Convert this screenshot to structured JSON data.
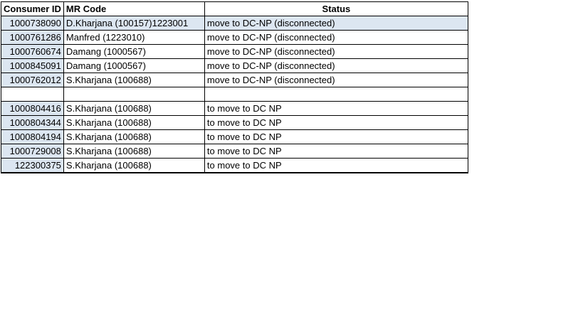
{
  "colors": {
    "cell_fill_blue": "#dce6f1",
    "border": "#000000",
    "text": "#000000",
    "background": "#ffffff"
  },
  "table": {
    "columns": [
      {
        "key": "consumer_id",
        "label": "Consumer ID"
      },
      {
        "key": "mr_code",
        "label": "MR Code"
      },
      {
        "key": "status",
        "label": "Status"
      }
    ],
    "rows": [
      {
        "consumer_id": "1000738090",
        "mr_code": "D.Kharjana (100157)1223001",
        "status": "move to DC-NP (disconnected)",
        "highlighted": true,
        "empty": false
      },
      {
        "consumer_id": "1000761286",
        "mr_code": "Manfred (1223010)",
        "status": "move to DC-NP (disconnected)",
        "highlighted": false,
        "empty": false
      },
      {
        "consumer_id": "1000760674",
        "mr_code": "Damang (1000567)",
        "status": "move to DC-NP (disconnected)",
        "highlighted": false,
        "empty": false
      },
      {
        "consumer_id": "1000845091",
        "mr_code": "Damang (1000567)",
        "status": "move to DC-NP (disconnected)",
        "highlighted": false,
        "empty": false
      },
      {
        "consumer_id": "1000762012",
        "mr_code": "S.Kharjana (100688)",
        "status": "move to DC-NP (disconnected)",
        "highlighted": false,
        "empty": false
      },
      {
        "consumer_id": "",
        "mr_code": "",
        "status": "",
        "highlighted": false,
        "empty": true
      },
      {
        "consumer_id": "1000804416",
        "mr_code": "S.Kharjana (100688)",
        "status": "to move to DC NP",
        "highlighted": false,
        "empty": false
      },
      {
        "consumer_id": "1000804344",
        "mr_code": "S.Kharjana (100688)",
        "status": "to move to DC NP",
        "highlighted": false,
        "empty": false
      },
      {
        "consumer_id": "1000804194",
        "mr_code": "S.Kharjana (100688)",
        "status": "to move to DC NP",
        "highlighted": false,
        "empty": false
      },
      {
        "consumer_id": "1000729008",
        "mr_code": "S.Kharjana (100688)",
        "status": "to move to DC NP",
        "highlighted": false,
        "empty": false
      },
      {
        "consumer_id": "122300375",
        "mr_code": "S.Kharjana (100688)",
        "status": "to move to DC NP",
        "highlighted": false,
        "empty": false
      }
    ]
  }
}
